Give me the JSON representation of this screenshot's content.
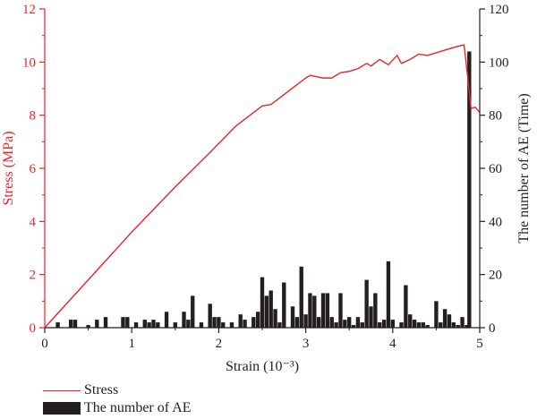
{
  "chart_data": {
    "type": "line+bar",
    "xlabel": "Strain (10⁻³)",
    "ylabel_left": "Stress (MPa)",
    "ylabel_right": "The number of AE (Time)",
    "xlim": [
      0,
      5
    ],
    "ylim_left": [
      0,
      12
    ],
    "ylim_right": [
      0,
      120
    ],
    "x_ticks": [
      "0",
      "1",
      "2",
      "3",
      "4",
      "5"
    ],
    "y_left_ticks": [
      "0",
      "2",
      "4",
      "6",
      "8",
      "10",
      "12"
    ],
    "y_right_ticks": [
      "0",
      "20",
      "40",
      "60",
      "80",
      "100",
      "120"
    ],
    "grid": false,
    "legend_position": "bottom-left",
    "colors": {
      "stress": "#e8242a",
      "ae": "#231f20",
      "axis": "#231f20"
    },
    "series": [
      {
        "name": "Stress",
        "type": "line",
        "axis": "left",
        "points": [
          [
            0,
            0
          ],
          [
            0.5,
            1.8
          ],
          [
            1.0,
            3.6
          ],
          [
            1.5,
            5.3
          ],
          [
            1.9,
            6.6
          ],
          [
            2.2,
            7.6
          ],
          [
            2.5,
            8.35
          ],
          [
            2.6,
            8.4
          ],
          [
            2.8,
            8.9
          ],
          [
            3.0,
            9.4
          ],
          [
            3.05,
            9.5
          ],
          [
            3.2,
            9.4
          ],
          [
            3.3,
            9.4
          ],
          [
            3.4,
            9.6
          ],
          [
            3.5,
            9.65
          ],
          [
            3.6,
            9.75
          ],
          [
            3.7,
            9.95
          ],
          [
            3.75,
            9.85
          ],
          [
            3.85,
            10.1
          ],
          [
            3.95,
            9.9
          ],
          [
            4.05,
            10.25
          ],
          [
            4.1,
            9.95
          ],
          [
            4.2,
            10.1
          ],
          [
            4.3,
            10.3
          ],
          [
            4.4,
            10.25
          ],
          [
            4.5,
            10.35
          ],
          [
            4.6,
            10.45
          ],
          [
            4.7,
            10.55
          ],
          [
            4.82,
            10.65
          ],
          [
            4.86,
            9.5
          ],
          [
            4.9,
            8.25
          ],
          [
            4.95,
            8.3
          ],
          [
            5.0,
            8.1
          ]
        ]
      },
      {
        "name": "The number of AE",
        "type": "bar",
        "axis": "right",
        "bar_width": 0.045,
        "x": [
          0.15,
          0.3,
          0.35,
          0.5,
          0.6,
          0.7,
          0.9,
          0.95,
          1.05,
          1.15,
          1.2,
          1.25,
          1.3,
          1.4,
          1.5,
          1.6,
          1.65,
          1.7,
          1.8,
          1.9,
          1.95,
          2.0,
          2.05,
          2.15,
          2.25,
          2.3,
          2.4,
          2.45,
          2.5,
          2.55,
          2.6,
          2.65,
          2.7,
          2.75,
          2.85,
          2.9,
          2.95,
          3.0,
          3.05,
          3.1,
          3.15,
          3.2,
          3.25,
          3.3,
          3.35,
          3.4,
          3.45,
          3.5,
          3.55,
          3.6,
          3.65,
          3.7,
          3.75,
          3.8,
          3.85,
          3.9,
          3.95,
          4.0,
          4.1,
          4.15,
          4.2,
          4.25,
          4.3,
          4.35,
          4.4,
          4.5,
          4.55,
          4.6,
          4.65,
          4.7,
          4.75,
          4.8,
          4.85,
          4.88
        ],
        "values": [
          2,
          3,
          3,
          1,
          3,
          4,
          4,
          4,
          2,
          3,
          2,
          3,
          2,
          6,
          2,
          6,
          3,
          12,
          2,
          9,
          4,
          4,
          2,
          2,
          5,
          3,
          4,
          6,
          19,
          12,
          14,
          7,
          2,
          17,
          8,
          4,
          23,
          5,
          13,
          12,
          4,
          13,
          13,
          4,
          2,
          13,
          3,
          4,
          1,
          4,
          2,
          18,
          8,
          13,
          2,
          3,
          25,
          3,
          2,
          16,
          5,
          3,
          2,
          2,
          1,
          10,
          2,
          7,
          5,
          2,
          1,
          4,
          1,
          104
        ]
      }
    ]
  },
  "legend": {
    "stress_label": "Stress",
    "ae_label": "The number of AE"
  }
}
